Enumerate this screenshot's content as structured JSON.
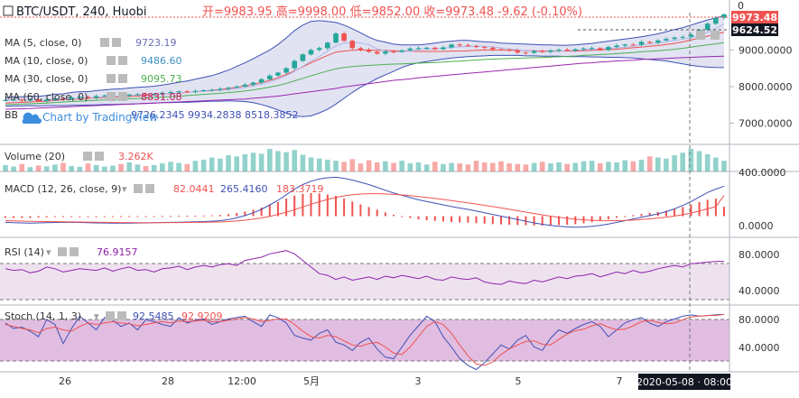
{
  "header": {
    "symbol": "BTC/USDT, 240, Huobi",
    "ohlc": "开=9983.95 高=9998.00 低=9852.00 收=9973.48 -9.62 (-0.10%)"
  },
  "legend": {
    "ma5_label": "MA (5, close, 0)",
    "ma5_value": "9723.19",
    "ma10_label": "MA (10, close, 0)",
    "ma10_value": "9486.60",
    "ma30_label": "MA (30, close, 0)",
    "ma30_value": "9095.73",
    "ma60_label": "MA (60, close, 0)",
    "ma60_value": "8831.08",
    "bb_label": "BB",
    "bb_values": "9726.2345  9934.2838  8518.3852",
    "watermark": "Chart by TradingView"
  },
  "price_labels": {
    "last_price": "9973.48",
    "ma_price": "9624.52",
    "top_cut": "0"
  },
  "panes": {
    "volume": {
      "label": "Volume (20)",
      "value": "3.262K",
      "scale": "400.0000"
    },
    "macd": {
      "label": "MACD (12, 26, close, 9)",
      "v1": "82.0441",
      "v2": "265.4160",
      "v3": "183.3719",
      "scale": "0.0000"
    },
    "rsi": {
      "label": "RSI (14)",
      "value": "76.9157",
      "scale_top": "80.0000",
      "scale_bottom": "40.0000"
    },
    "stoch": {
      "label": "Stoch (14, 1, 3)",
      "v1": "92.5485",
      "v2": "92.9209",
      "scale_top": "80.0000",
      "scale_bottom": "40.0000"
    }
  },
  "x_axis": {
    "ticks": [
      "26",
      "28",
      "12:00",
      "5月",
      "3",
      "5",
      "7"
    ],
    "cursor_label": "2020-05-08 · 08:00"
  },
  "colors": {
    "up": "#26a69a",
    "down": "#ef5350",
    "bb_fill": "#d7d9ee",
    "bb_line": "#3f51b5",
    "rsi_fill": "#efe2ef",
    "stoch_fill": "#dcb2dc",
    "macd_line": "#3f51b5",
    "signal_line": "#ef5350",
    "ma5": "#b0b6e8",
    "ma10": "#ef5350",
    "ma30": "#4caf50",
    "ma60": "#9c27b0"
  },
  "chart_data": {
    "type": "line",
    "price": {
      "yticks": [
        7000,
        8000,
        9000
      ],
      "ylim": [
        6420,
        10020
      ],
      "close": [
        7630,
        7640,
        7620,
        7650,
        7600,
        7640,
        7680,
        7660,
        7700,
        7720,
        7690,
        7740,
        7760,
        7770,
        7750,
        7780,
        7790,
        7780,
        7800,
        7830,
        7850,
        7870,
        7860,
        7880,
        7900,
        7910,
        7940,
        7970,
        8000,
        8050,
        8110,
        8200,
        8300,
        8380,
        8500,
        8700,
        8880,
        9000,
        9050,
        9200,
        9450,
        9250,
        9050,
        9010,
        8950,
        8900,
        8960,
        8950,
        8990,
        9040,
        9050,
        9060,
        9020,
        9070,
        9150,
        9130,
        9110,
        9080,
        9060,
        9020,
        9010,
        8990,
        8930,
        8920,
        8970,
        8950,
        8990,
        9010,
        8980,
        9020,
        9040,
        9050,
        9000,
        9080,
        9120,
        9150,
        9140,
        9220,
        9200,
        9260,
        9300,
        9340,
        9360,
        9420,
        9550,
        9720,
        9880,
        9973.48
      ],
      "bb_upper": [
        7700,
        7720,
        7720,
        7740,
        7730,
        7760,
        7790,
        7800,
        7840,
        7860,
        7860,
        7890,
        7910,
        7930,
        7940,
        7960,
        7980,
        7990,
        8010,
        8040,
        8080,
        8120,
        8150,
        8200,
        8250,
        8300,
        8370,
        8450,
        8550,
        8650,
        8760,
        8880,
        9000,
        9150,
        9330,
        9530,
        9680,
        9780,
        9800,
        9780,
        9750,
        9680,
        9580,
        9470,
        9350,
        9260,
        9210,
        9160,
        9140,
        9140,
        9140,
        9160,
        9190,
        9220,
        9240,
        9260,
        9260,
        9240,
        9220,
        9210,
        9190,
        9180,
        9170,
        9160,
        9150,
        9140,
        9140,
        9130,
        9130,
        9140,
        9160,
        9180,
        9210,
        9240,
        9270,
        9300,
        9330,
        9360,
        9400,
        9440,
        9500,
        9560,
        9610,
        9680,
        9750,
        9820,
        9880,
        9934.28
      ],
      "bb_lower": [
        7460,
        7470,
        7470,
        7480,
        7470,
        7480,
        7480,
        7480,
        7490,
        7490,
        7500,
        7500,
        7510,
        7510,
        7520,
        7520,
        7530,
        7540,
        7550,
        7560,
        7560,
        7570,
        7570,
        7580,
        7590,
        7600,
        7600,
        7610,
        7600,
        7590,
        7560,
        7510,
        7440,
        7360,
        7280,
        7200,
        7180,
        7200,
        7280,
        7380,
        7520,
        7680,
        7840,
        7980,
        8100,
        8220,
        8320,
        8420,
        8520,
        8600,
        8650,
        8680,
        8720,
        8750,
        8780,
        8800,
        8820,
        8830,
        8840,
        8850,
        8850,
        8850,
        8850,
        8840,
        8840,
        8830,
        8830,
        8830,
        8820,
        8820,
        8820,
        8810,
        8810,
        8800,
        8800,
        8790,
        8780,
        8760,
        8740,
        8720,
        8700,
        8660,
        8620,
        8580,
        8550,
        8530,
        8520,
        8518.39
      ],
      "ma10": [
        7550,
        7560,
        7570,
        7580,
        7590,
        7600,
        7620,
        7640,
        7650,
        7660,
        7680,
        7690,
        7700,
        7710,
        7720,
        7730,
        7740,
        7760,
        7770,
        7790,
        7800,
        7820,
        7840,
        7860,
        7880,
        7900,
        7920,
        7950,
        7980,
        8020,
        8060,
        8110,
        8170,
        8240,
        8330,
        8430,
        8540,
        8650,
        8750,
        8850,
        8940,
        8970,
        8990,
        9000,
        9000,
        8990,
        8990,
        8980,
        8970,
        8970,
        8960,
        8960,
        8960,
        8960,
        8970,
        8970,
        8980,
        8990,
        9000,
        9000,
        9000,
        8990,
        8990,
        8980,
        8980,
        8970,
        8970,
        8970,
        8970,
        8970,
        8980,
        8990,
        9000,
        9010,
        9020,
        9040,
        9060,
        9080,
        9100,
        9120,
        9150,
        9180,
        9220,
        9270,
        9330,
        9380,
        9430,
        9486.6
      ],
      "ma60": [
        7380,
        7390,
        7395,
        7400,
        7410,
        7420,
        7430,
        7440,
        7450,
        7460,
        7470,
        7480,
        7490,
        7500,
        7510,
        7520,
        7530,
        7540,
        7550,
        7560,
        7570,
        7580,
        7590,
        7600,
        7610,
        7620,
        7630,
        7640,
        7650,
        7660,
        7680,
        7700,
        7720,
        7740,
        7770,
        7800,
        7830,
        7860,
        7890,
        7920,
        7950,
        7990,
        8020,
        8050,
        8080,
        8110,
        8140,
        8170,
        8190,
        8210,
        8240,
        8260,
        8280,
        8300,
        8320,
        8340,
        8360,
        8380,
        8400,
        8420,
        8440,
        8460,
        8480,
        8500,
        8520,
        8540,
        8560,
        8580,
        8600,
        8620,
        8640,
        8650,
        8670,
        8680,
        8700,
        8710,
        8720,
        8740,
        8750,
        8760,
        8770,
        8780,
        8790,
        8800,
        8810,
        8820,
        8825,
        8831.08
      ]
    },
    "volume": [
      120,
      90,
      140,
      80,
      110,
      95,
      130,
      160,
      100,
      85,
      150,
      120,
      90,
      110,
      140,
      170,
      130,
      100,
      120,
      150,
      180,
      160,
      140,
      200,
      220,
      260,
      240,
      300,
      280,
      320,
      350,
      330,
      420,
      380,
      360,
      400,
      310,
      260,
      240,
      220,
      200,
      180,
      230,
      150,
      210,
      170,
      190,
      160,
      200,
      150,
      170,
      130,
      180,
      140,
      160,
      150,
      130,
      200,
      170,
      160,
      190,
      150,
      140,
      130,
      160,
      180,
      150,
      170,
      140,
      160,
      190,
      200,
      150,
      180,
      170,
      210,
      190,
      220,
      280,
      260,
      240,
      300,
      350,
      420,
      380,
      320,
      260,
      200
    ],
    "macd": {
      "ylim": [
        -180,
        380
      ],
      "macd": [
        -55,
        -58,
        -60,
        -62,
        -60,
        -58,
        -56,
        -55,
        -55,
        -56,
        -58,
        -60,
        -61,
        -62,
        -62,
        -62,
        -61,
        -60,
        -58,
        -56,
        -55,
        -54,
        -52,
        -50,
        -48,
        -45,
        -40,
        -30,
        -15,
        5,
        30,
        60,
        100,
        140,
        190,
        240,
        280,
        310,
        330,
        340,
        345,
        335,
        320,
        300,
        280,
        255,
        230,
        205,
        185,
        165,
        145,
        130,
        115,
        100,
        85,
        72,
        60,
        45,
        30,
        15,
        0,
        -15,
        -30,
        -45,
        -60,
        -72,
        -82,
        -90,
        -95,
        -98,
        -96,
        -90,
        -82,
        -70,
        -55,
        -40,
        -25,
        -10,
        5,
        20,
        40,
        65,
        95,
        130,
        170,
        210,
        240,
        265.4
      ],
      "signal": [
        -40,
        -42,
        -44,
        -46,
        -47,
        -48,
        -49,
        -50,
        -51,
        -52,
        -53,
        -54,
        -55,
        -56,
        -57,
        -57,
        -58,
        -58,
        -58,
        -58,
        -57,
        -57,
        -56,
        -55,
        -54,
        -53,
        -51,
        -48,
        -43,
        -36,
        -27,
        -16,
        -2,
        15,
        35,
        58,
        82,
        106,
        128,
        148,
        166,
        180,
        190,
        196,
        199,
        199,
        197,
        193,
        188,
        182,
        174,
        166,
        157,
        148,
        138,
        128,
        118,
        107,
        96,
        85,
        73,
        61,
        48,
        36,
        23,
        11,
        0,
        -10,
        -19,
        -27,
        -33,
        -37,
        -40,
        -41,
        -40,
        -38,
        -35,
        -30,
        -24,
        -17,
        -9,
        1,
        13,
        28,
        45,
        65,
        85,
        183.37
      ],
      "hist": [
        -15,
        -16,
        -16,
        -16,
        -13,
        -10,
        -7,
        -5,
        -4,
        -4,
        -5,
        -6,
        -6,
        -6,
        -5,
        -5,
        -3,
        -2,
        0,
        2,
        2,
        3,
        4,
        5,
        6,
        8,
        11,
        18,
        28,
        41,
        57,
        76,
        102,
        125,
        155,
        182,
        198,
        204,
        202,
        192,
        179,
        155,
        130,
        104,
        81,
        56,
        33,
        12,
        -3,
        -17,
        -29,
        -36,
        -42,
        -48,
        -53,
        -56,
        -58,
        -62,
        -66,
        -70,
        -73,
        -76,
        -78,
        -81,
        -83,
        -83,
        -82,
        -80,
        -76,
        -71,
        -63,
        -53,
        -42,
        -29,
        -15,
        -2,
        10,
        20,
        29,
        37,
        49,
        64,
        82,
        102,
        125,
        145,
        155,
        82.04
      ]
    },
    "rsi": {
      "ylim": [
        25,
        105
      ],
      "values": [
        68,
        66,
        67,
        63,
        65,
        70,
        68,
        64,
        66,
        68,
        67,
        66,
        69,
        65,
        68,
        70,
        66,
        67,
        64,
        68,
        69,
        71,
        67,
        70,
        72,
        70,
        73,
        74,
        72,
        78,
        80,
        82,
        86,
        88,
        90,
        86,
        78,
        70,
        62,
        60,
        55,
        58,
        54,
        56,
        58,
        55,
        59,
        57,
        60,
        58,
        56,
        59,
        55,
        54,
        58,
        56,
        55,
        57,
        52,
        50,
        49,
        53,
        51,
        50,
        54,
        52,
        55,
        58,
        56,
        59,
        60,
        62,
        58,
        61,
        64,
        62,
        66,
        63,
        65,
        68,
        70,
        72,
        70,
        74,
        75,
        76,
        77,
        76.92
      ]
    },
    "stoch": {
      "ylim": [
        10,
        105
      ],
      "k": [
        80,
        72,
        74,
        68,
        60,
        85,
        78,
        50,
        72,
        90,
        80,
        70,
        88,
        84,
        75,
        80,
        70,
        85,
        82,
        78,
        75,
        88,
        80,
        84,
        86,
        78,
        82,
        86,
        88,
        90,
        82,
        75,
        92,
        88,
        80,
        62,
        58,
        55,
        65,
        70,
        52,
        48,
        40,
        52,
        58,
        42,
        30,
        28,
        45,
        62,
        76,
        90,
        82,
        60,
        45,
        28,
        18,
        12,
        22,
        35,
        48,
        42,
        55,
        62,
        45,
        40,
        58,
        70,
        65,
        72,
        78,
        82,
        75,
        60,
        70,
        80,
        85,
        88,
        80,
        75,
        82,
        86,
        90,
        92,
        90,
        91,
        92,
        92.55
      ],
      "d": [
        78,
        75,
        72,
        70,
        66,
        72,
        74,
        70,
        68,
        75,
        80,
        78,
        80,
        82,
        80,
        79,
        76,
        78,
        80,
        82,
        80,
        83,
        82,
        83,
        84,
        82,
        82,
        84,
        86,
        88,
        86,
        82,
        84,
        86,
        86,
        78,
        68,
        60,
        58,
        62,
        60,
        54,
        48,
        46,
        50,
        52,
        45,
        36,
        34,
        45,
        60,
        75,
        82,
        78,
        65,
        48,
        32,
        20,
        18,
        23,
        34,
        42,
        48,
        53,
        54,
        49,
        48,
        56,
        64,
        69,
        71,
        76,
        79,
        74,
        70,
        71,
        76,
        82,
        84,
        81,
        79,
        80,
        85,
        89,
        90,
        91,
        91,
        92.92
      ]
    }
  }
}
